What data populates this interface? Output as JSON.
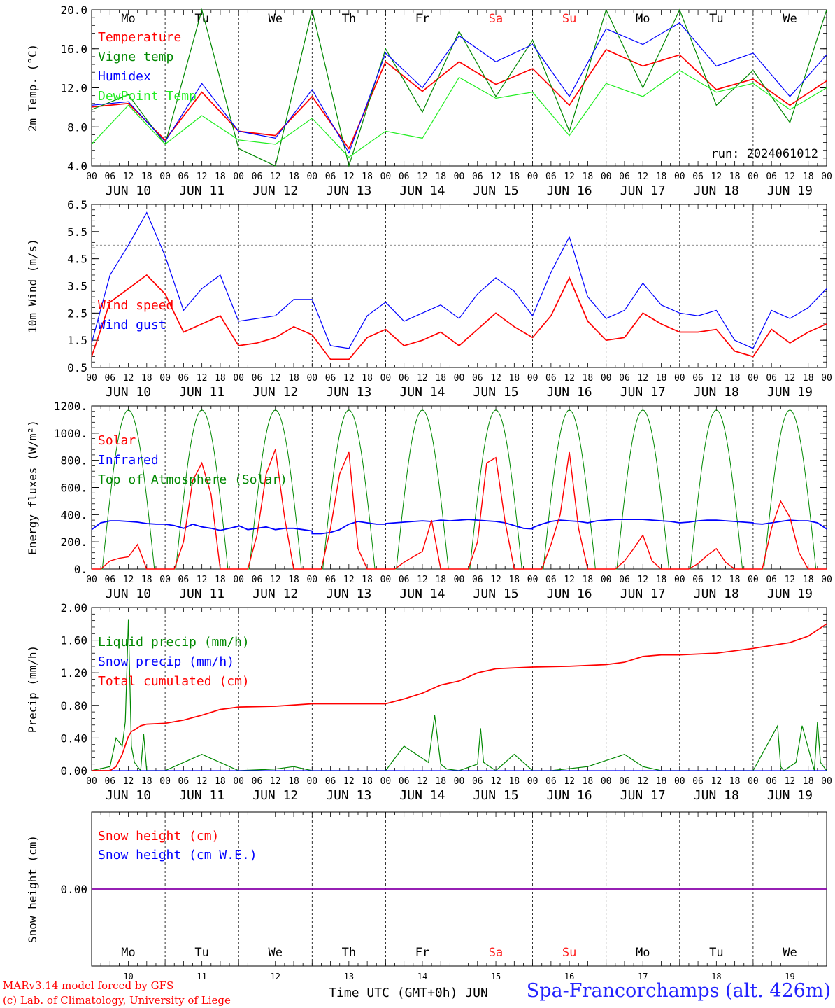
{
  "footer": {
    "credit_1": "MARv3.14 model forced by GFS",
    "credit_2": "(c) Lab. of Climatology, University of Liege",
    "xlabel": "Time UTC (GMT+0h) JUN",
    "station": "Spa-Francorchamps (alt. 426m)"
  },
  "colors": {
    "red": "#ff0000",
    "green": "#008800",
    "blue": "#0000ff",
    "lightgreen": "#22ee22",
    "purple": "#8800aa",
    "weekend": "#ff2222",
    "text": "#000000"
  },
  "axis": {
    "days": [
      "JUN 10",
      "JUN 11",
      "JUN 12",
      "JUN 13",
      "JUN 14",
      "JUN 15",
      "JUN 16",
      "JUN 17",
      "JUN 18",
      "JUN 19"
    ],
    "hour_ticks": [
      "00",
      "06",
      "12",
      "18"
    ],
    "weekdays": [
      "Mo",
      "Tu",
      "We",
      "Th",
      "Fr",
      "Sa",
      "Su",
      "Mo",
      "Tu",
      "We"
    ],
    "weekend_flags": [
      false,
      false,
      false,
      false,
      false,
      true,
      true,
      false,
      false,
      false
    ],
    "bottom_day_numbers": [
      "10",
      "11",
      "12",
      "13",
      "14",
      "15",
      "16",
      "17",
      "18",
      "19"
    ]
  },
  "chart_data": [
    {
      "type": "line",
      "ylabel": "2m Temp. (°C)",
      "ylim": [
        4.0,
        22.0
      ],
      "yticks": [
        "4.0",
        "8.0",
        "12.0",
        "16.0",
        "20.0"
      ],
      "annotation": "run: 2024061012",
      "x": [
        0,
        12,
        24,
        36,
        48,
        60,
        72,
        84,
        96,
        108,
        120,
        132,
        144,
        156,
        168,
        180,
        192,
        204,
        216,
        228,
        240
      ],
      "x_unit": "hours since 2024-06-10 00 UTC",
      "series": [
        {
          "name": "Temperature",
          "color": "#ff0000",
          "values": [
            10.8,
            11.2,
            7.0,
            12.5,
            8.0,
            7.5,
            12.0,
            6.0,
            16.0,
            12.6,
            16.0,
            13.4,
            15.2,
            11.0,
            17.4,
            15.5,
            16.8,
            12.8,
            14.0,
            11.0,
            13.8
          ]
        },
        {
          "name": "Vigne temp",
          "color": "#008800",
          "values": [
            10.5,
            12.2,
            6.5,
            22.0,
            6.0,
            4.0,
            22.0,
            4.0,
            17.5,
            10.2,
            19.5,
            12.0,
            18.5,
            8.0,
            22.0,
            13.0,
            22.0,
            11.0,
            15.0,
            9.0,
            22.0
          ]
        },
        {
          "name": "Humidex",
          "color": "#0000ff",
          "values": [
            11.0,
            11.4,
            6.8,
            13.5,
            8.0,
            7.2,
            12.8,
            5.5,
            17.0,
            13.0,
            19.0,
            16.0,
            18.0,
            12.0,
            19.8,
            18.0,
            20.5,
            15.5,
            17.0,
            12.0,
            16.8
          ]
        },
        {
          "name": "DewPoint Temp",
          "color": "#22ee22",
          "values": [
            6.5,
            11.0,
            6.5,
            9.8,
            7.0,
            6.5,
            9.5,
            5.0,
            8.0,
            7.2,
            14.2,
            11.8,
            12.5,
            7.5,
            13.5,
            12.0,
            15.0,
            12.5,
            13.5,
            10.5,
            13.0
          ]
        }
      ]
    },
    {
      "type": "line",
      "ylabel": "10m Wind (m/s)",
      "ylim": [
        0.5,
        6.5
      ],
      "yticks": [
        "0.5",
        "1.5",
        "2.5",
        "3.5",
        "4.5",
        "5.5",
        "6.5"
      ],
      "reference_line": 5.0,
      "x": [
        0,
        6,
        12,
        18,
        24,
        30,
        36,
        42,
        48,
        54,
        60,
        66,
        72,
        78,
        84,
        90,
        96,
        102,
        108,
        114,
        120,
        126,
        132,
        138,
        144,
        150,
        156,
        162,
        168,
        174,
        180,
        186,
        192,
        198,
        204,
        210,
        216,
        222,
        228,
        234,
        240
      ],
      "series": [
        {
          "name": "Wind speed",
          "color": "#ff0000",
          "values": [
            0.9,
            2.9,
            3.4,
            3.9,
            3.2,
            1.8,
            2.1,
            2.4,
            1.3,
            1.4,
            1.6,
            2.0,
            1.7,
            0.8,
            0.8,
            1.6,
            1.9,
            1.3,
            1.5,
            1.8,
            1.3,
            1.9,
            2.5,
            2.0,
            1.6,
            2.4,
            3.8,
            2.2,
            1.5,
            1.6,
            2.5,
            2.1,
            1.8,
            1.8,
            1.9,
            1.1,
            0.9,
            1.9,
            1.4,
            1.8,
            2.1
          ]
        },
        {
          "name": "Wind gust",
          "color": "#0000ff",
          "values": [
            1.4,
            3.9,
            5.0,
            6.2,
            4.6,
            2.6,
            3.4,
            3.9,
            2.2,
            2.3,
            2.4,
            3.0,
            3.0,
            1.3,
            1.2,
            2.4,
            2.9,
            2.2,
            2.5,
            2.8,
            2.3,
            3.2,
            3.8,
            3.3,
            2.4,
            4.0,
            5.3,
            3.1,
            2.3,
            2.6,
            3.6,
            2.8,
            2.5,
            2.4,
            2.6,
            1.5,
            1.2,
            2.6,
            2.3,
            2.7,
            3.4
          ]
        }
      ]
    },
    {
      "type": "line",
      "ylabel": "Energy fluxes (W/m²)",
      "ylim": [
        0,
        1200
      ],
      "yticks": [
        "0.",
        "200.",
        "400.",
        "600.",
        "800.",
        "1000.",
        "1200."
      ],
      "daily_series": {
        "x_in_day": [
          0,
          3,
          6,
          9,
          12,
          15,
          18,
          21,
          24
        ],
        "Solar": [
          [
            0,
            0,
            60,
            80,
            90,
            180,
            0,
            0,
            0
          ],
          [
            0,
            0,
            200,
            650,
            780,
            550,
            0,
            0,
            0
          ],
          [
            0,
            0,
            250,
            700,
            880,
            380,
            0,
            0,
            0
          ],
          [
            0,
            0,
            300,
            700,
            860,
            150,
            0,
            0,
            0
          ],
          [
            0,
            0,
            50,
            90,
            130,
            360,
            0,
            0,
            0
          ],
          [
            0,
            0,
            200,
            780,
            820,
            350,
            0,
            0,
            0
          ],
          [
            0,
            0,
            180,
            400,
            860,
            300,
            0,
            0,
            0
          ],
          [
            0,
            0,
            60,
            150,
            250,
            60,
            0,
            0,
            0
          ],
          [
            0,
            0,
            40,
            100,
            150,
            50,
            0,
            0,
            0
          ],
          [
            0,
            0,
            300,
            500,
            380,
            120,
            0,
            0,
            0
          ]
        ],
        "Infrared": [
          [
            290,
            340,
            355,
            355,
            350,
            345,
            335,
            330,
            330
          ],
          [
            330,
            320,
            300,
            330,
            310,
            300,
            285,
            300,
            315
          ],
          [
            320,
            290,
            300,
            310,
            290,
            300,
            300,
            290,
            280
          ],
          [
            260,
            260,
            270,
            290,
            330,
            350,
            340,
            330,
            330
          ],
          [
            335,
            340,
            345,
            350,
            355,
            350,
            360,
            355,
            360
          ],
          [
            360,
            365,
            360,
            355,
            350,
            340,
            320,
            300,
            295
          ],
          [
            305,
            330,
            350,
            360,
            355,
            350,
            340,
            355,
            360
          ],
          [
            360,
            365,
            365,
            365,
            365,
            360,
            355,
            350,
            340
          ],
          [
            340,
            345,
            355,
            360,
            360,
            355,
            350,
            345,
            340
          ],
          [
            335,
            330,
            340,
            350,
            360,
            355,
            355,
            340,
            295
          ]
        ]
      },
      "series": [
        {
          "name": "Solar",
          "color": "#ff0000"
        },
        {
          "name": "Infrared",
          "color": "#0000ff"
        },
        {
          "name": "Top of Atmosphere (Solar)",
          "color": "#008800",
          "peak": 1170,
          "sunrise_hour": 3.5,
          "sunset_hour": 20.5
        }
      ]
    },
    {
      "type": "line",
      "ylabel": "Precip (mm/h)",
      "ylim": [
        0,
        2.0
      ],
      "yticks": [
        "0.00",
        "0.40",
        "0.80",
        "1.20",
        "1.60",
        "2.00"
      ],
      "series": [
        {
          "name": "Liquid precip (mm/h)",
          "color": "#008800",
          "x": [
            0,
            6,
            8,
            10,
            11,
            12,
            13,
            14,
            15,
            16,
            17,
            18,
            19,
            20,
            21,
            22,
            24,
            30,
            36,
            42,
            48,
            60,
            66,
            72,
            96,
            102,
            108,
            110,
            112,
            114,
            116,
            120,
            126,
            127,
            128,
            132,
            138,
            144,
            150,
            162,
            174,
            180,
            186,
            192,
            198,
            216,
            224,
            225,
            226,
            230,
            232,
            236,
            237,
            238,
            240
          ],
          "values": [
            0,
            0.05,
            0.4,
            0.3,
            0.6,
            1.85,
            0.3,
            0.1,
            0.05,
            0,
            0.45,
            0,
            0,
            0,
            0,
            0,
            0,
            0.1,
            0.2,
            0.1,
            0,
            0.02,
            0.05,
            0,
            0,
            0.3,
            0.15,
            0.1,
            0.68,
            0.08,
            0.02,
            0,
            0.08,
            0.52,
            0.1,
            0,
            0.2,
            0,
            0,
            0.05,
            0.2,
            0.05,
            0,
            0,
            0,
            0,
            0.55,
            0.05,
            0,
            0.1,
            0.55,
            0,
            0.6,
            0.1,
            0
          ]
        },
        {
          "name": "Snow precip (mm/h)",
          "color": "#0000ff",
          "x": [
            0,
            240
          ],
          "values": [
            0,
            0
          ]
        },
        {
          "name": "Total cumulated (cm)",
          "color": "#ff0000",
          "x": [
            0,
            6,
            8,
            10,
            12,
            13,
            14,
            16,
            18,
            24,
            30,
            36,
            42,
            48,
            60,
            72,
            84,
            96,
            102,
            108,
            114,
            120,
            126,
            132,
            144,
            156,
            168,
            174,
            180,
            186,
            192,
            204,
            216,
            228,
            234,
            240
          ],
          "values": [
            0,
            0,
            0.05,
            0.2,
            0.42,
            0.48,
            0.5,
            0.55,
            0.57,
            0.58,
            0.62,
            0.68,
            0.75,
            0.78,
            0.79,
            0.82,
            0.82,
            0.82,
            0.88,
            0.95,
            1.05,
            1.1,
            1.2,
            1.25,
            1.27,
            1.28,
            1.3,
            1.33,
            1.4,
            1.42,
            1.42,
            1.44,
            1.5,
            1.57,
            1.65,
            1.8
          ]
        }
      ]
    },
    {
      "type": "line",
      "ylabel": "Snow height (cm)",
      "ylim": [
        -1,
        1
      ],
      "yticks": [
        "0.00"
      ],
      "series": [
        {
          "name": "Snow height (cm)",
          "color": "#ff0000",
          "x": [
            0,
            240
          ],
          "values": [
            0,
            0
          ]
        },
        {
          "name": "Snow height (cm W.E.)",
          "color": "#0000ff",
          "x": [
            0,
            240
          ],
          "values": [
            0,
            0
          ]
        }
      ]
    }
  ]
}
